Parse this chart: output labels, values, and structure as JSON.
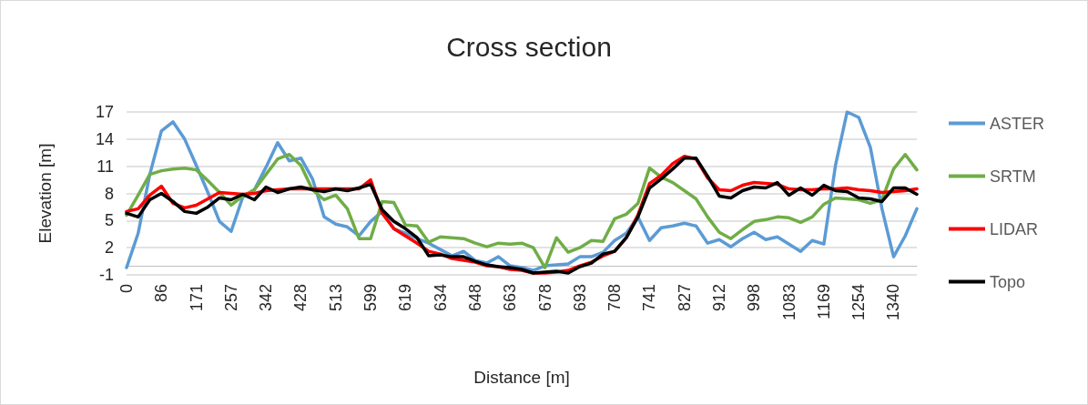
{
  "chart_data": {
    "type": "line",
    "title": "Cross section",
    "xlabel": "Distance [m]",
    "ylabel": "Elevation [m]",
    "categories": [
      "0",
      null,
      null,
      "86",
      null,
      null,
      "171",
      null,
      null,
      "257",
      null,
      null,
      "342",
      null,
      null,
      "428",
      null,
      null,
      "513",
      null,
      null,
      "599",
      null,
      null,
      "619",
      null,
      null,
      "634",
      null,
      null,
      "648",
      null,
      null,
      "663",
      null,
      null,
      "678",
      null,
      null,
      "693",
      null,
      null,
      "708",
      null,
      null,
      "741",
      null,
      null,
      "827",
      null,
      null,
      "912",
      null,
      null,
      "998",
      null,
      null,
      "1083",
      null,
      null,
      "1169",
      null,
      null,
      "1254",
      null,
      null,
      "1340",
      null,
      null
    ],
    "series": [
      {
        "name": "ASTER",
        "color": "#5b9bd5",
        "values": [
          -0.2,
          3.6,
          10.1,
          14.9,
          15.9,
          14.0,
          11.1,
          8.1,
          4.9,
          3.8,
          7.6,
          8.4,
          10.9,
          13.6,
          11.6,
          11.9,
          9.6,
          5.4,
          4.6,
          4.3,
          3.3,
          4.9,
          6.0,
          4.1,
          3.6,
          3.0,
          2.5,
          1.8,
          1.1,
          1.6,
          0.6,
          0.3,
          1.0,
          0.0,
          -0.2,
          -0.5,
          0.0,
          0.1,
          0.2,
          1.0,
          1.0,
          1.5,
          2.8,
          3.6,
          5.4,
          2.8,
          4.2,
          4.4,
          4.7,
          4.4,
          2.5,
          2.9,
          2.1,
          3.0,
          3.7,
          2.9,
          3.2,
          2.4,
          1.6,
          2.8,
          2.4,
          11.1,
          17.0,
          16.4,
          13.1,
          6.3,
          1.0,
          3.3,
          6.3
        ]
      },
      {
        "name": "SRTM",
        "color": "#70ad47",
        "values": [
          5.6,
          7.8,
          10.1,
          10.5,
          10.7,
          10.8,
          10.6,
          9.4,
          8.1,
          6.7,
          7.7,
          8.4,
          10.1,
          11.8,
          12.3,
          11.1,
          8.4,
          7.3,
          7.8,
          6.3,
          3.0,
          3.0,
          7.1,
          7.0,
          4.5,
          4.4,
          2.6,
          3.2,
          3.1,
          3.0,
          2.5,
          2.1,
          2.5,
          2.4,
          2.5,
          2.0,
          -0.2,
          3.1,
          1.5,
          2.0,
          2.8,
          2.7,
          5.2,
          5.7,
          6.9,
          10.8,
          9.8,
          9.2,
          8.3,
          7.4,
          5.4,
          3.7,
          3.0,
          4.0,
          4.9,
          5.1,
          5.4,
          5.3,
          4.8,
          5.4,
          6.8,
          7.5,
          7.4,
          7.3,
          6.9,
          7.3,
          10.7,
          12.3,
          10.6
        ]
      },
      {
        "name": "LIDAR",
        "color": "#ff0000",
        "values": [
          6.0,
          6.3,
          7.8,
          8.8,
          6.9,
          6.4,
          6.7,
          7.4,
          8.1,
          8.0,
          7.9,
          8.0,
          8.3,
          8.4,
          8.5,
          8.5,
          8.5,
          8.5,
          8.5,
          8.5,
          8.5,
          9.5,
          5.8,
          4.1,
          3.3,
          2.5,
          1.6,
          1.3,
          0.8,
          0.6,
          0.4,
          0.0,
          -0.1,
          -0.4,
          -0.5,
          -0.8,
          -0.8,
          -0.7,
          -0.5,
          0.0,
          0.4,
          1.1,
          1.6,
          3.1,
          5.6,
          9.1,
          10.0,
          11.3,
          12.1,
          11.8,
          9.7,
          8.4,
          8.3,
          8.9,
          9.2,
          9.1,
          9.0,
          8.5,
          8.4,
          8.4,
          8.5,
          8.5,
          8.6,
          8.4,
          8.3,
          8.1,
          8.2,
          8.3,
          8.5
        ]
      },
      {
        "name": "Topo",
        "color": "#000000",
        "values": [
          5.8,
          5.4,
          7.3,
          8.0,
          7.1,
          6.0,
          5.8,
          6.5,
          7.5,
          7.3,
          7.9,
          7.3,
          8.7,
          8.1,
          8.5,
          8.7,
          8.4,
          8.2,
          8.5,
          8.3,
          8.6,
          9.0,
          6.2,
          4.9,
          4.1,
          3.1,
          1.1,
          1.2,
          1.0,
          1.0,
          0.5,
          0.1,
          -0.1,
          -0.2,
          -0.4,
          -0.8,
          -0.7,
          -0.6,
          -0.8,
          -0.1,
          0.3,
          1.3,
          1.6,
          3.1,
          5.4,
          8.6,
          9.6,
          10.7,
          11.9,
          11.9,
          9.9,
          7.7,
          7.5,
          8.3,
          8.7,
          8.6,
          9.2,
          7.8,
          8.6,
          7.8,
          8.9,
          8.3,
          8.2,
          7.5,
          7.4,
          7.1,
          8.6,
          8.6,
          7.9
        ]
      }
    ],
    "ylim": [
      -1,
      17
    ],
    "yticks": [
      -1,
      2,
      5,
      8,
      11,
      14,
      17
    ],
    "grid": "y",
    "legend": "right",
    "marker": "none",
    "line_style": "solid"
  }
}
